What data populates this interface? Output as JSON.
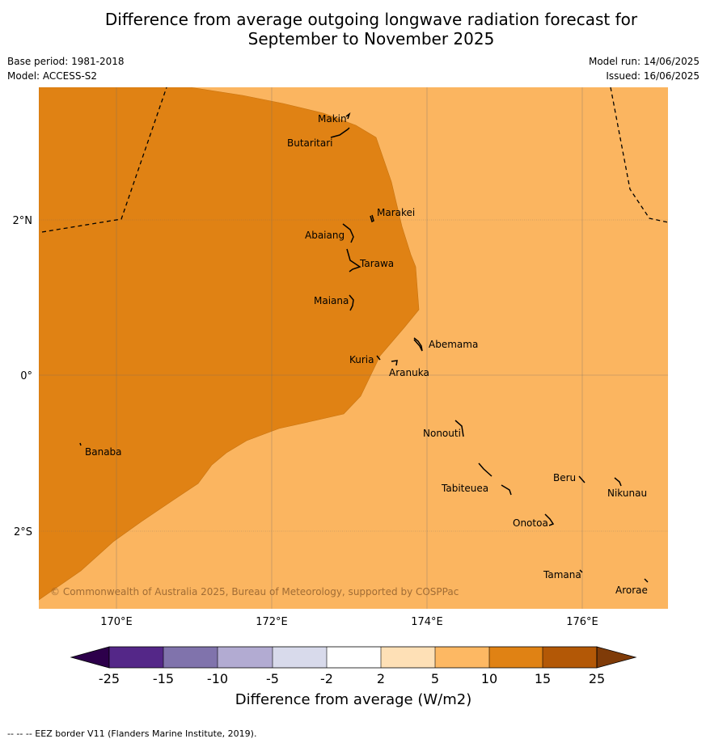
{
  "header": {
    "title_line1": "Difference from average outgoing longwave radiation forecast for",
    "title_line2": "September to November 2025",
    "base_period": "Base period: 1981-2018",
    "model": "Model: ACCESS-S2",
    "model_run": "Model run: 14/06/2025",
    "issued": "Issued: 16/06/2025"
  },
  "map": {
    "lon_ticks": [
      "170°E",
      "172°E",
      "174°E",
      "176°E"
    ],
    "lat_ticks": [
      "2°N",
      "0°",
      "2°S"
    ],
    "copyright": "© Commonwealth of Australia 2025, Bureau of Meteorology, supported by COSPPac",
    "islands": [
      "Makin",
      "Butaritari",
      "Marakei",
      "Abaiang",
      "Tarawa",
      "Maiana",
      "Abemama",
      "Kuria",
      "Aranuka",
      "Nonouti",
      "Banaba",
      "Tabiteuea",
      "Beru",
      "Nikunau",
      "Onotoa",
      "Tamana",
      "Arorae"
    ],
    "fill_colors": {
      "bin_5_10": "#fbb560",
      "bin_10_15": "#e08214"
    }
  },
  "colorbar": {
    "title": "Difference from average (W/m2)",
    "ticks": [
      "-25",
      "-15",
      "-10",
      "-5",
      "-2",
      "2",
      "5",
      "10",
      "15",
      "25"
    ],
    "colors": [
      "#2d004b",
      "#542788",
      "#8073ac",
      "#b2abd2",
      "#d8daeb",
      "#ffffff",
      "#fee0b6",
      "#fdb863",
      "#e08214",
      "#b35806",
      "#7f3b08"
    ]
  },
  "footnote": "--  --  -- EEZ border V11 (Flanders Marine Institute, 2019)."
}
